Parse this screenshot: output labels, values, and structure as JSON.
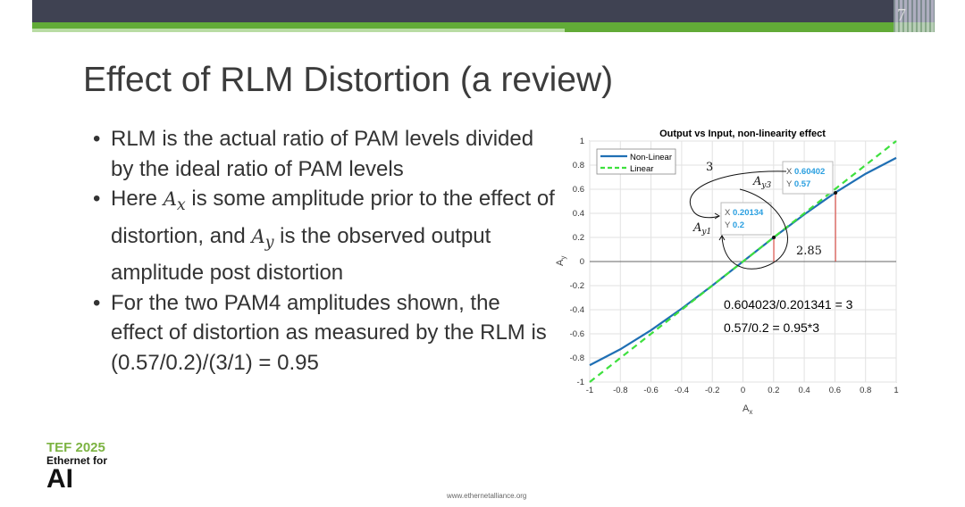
{
  "slide": {
    "page_number": "7",
    "title": "Effect of RLM Distortion (a review)",
    "footer_url": "www.ethernetalliance.org",
    "logo": {
      "line1": "TEF 2025",
      "line2": "Ethernet for",
      "line3": "AI"
    },
    "bullets": [
      {
        "parts": [
          "RLM is the actual ratio of PAM levels divided by the ideal ratio of PAM levels"
        ]
      },
      {
        "parts": [
          "Here ",
          "A",
          "x",
          " is some amplitude prior to the effect of distortion, and ",
          "A",
          "y",
          " is the observed output amplitude post distortion"
        ]
      },
      {
        "parts": [
          "For the two PAM4 amplitudes shown, the effect of distortion as measured by the RLM is (0.57/0.2)/(3/1) = 0.95"
        ]
      }
    ]
  },
  "colors": {
    "nonlinear": "#1f6fb4",
    "linear": "#3ee03e",
    "marker_line": "#d9342b",
    "datatip_value": "#2a9fe0",
    "header": "#3f4252",
    "accent_green": "#62ab37"
  },
  "chart_data": {
    "type": "line",
    "title": "Output vs Input, non-linearity effect",
    "xlabel": "A_x",
    "ylabel": "A_y",
    "xlim": [
      -1,
      1
    ],
    "ylim": [
      -1,
      1
    ],
    "grid": true,
    "legend_placement": "top-left",
    "xticks": [
      "-1",
      "-0.8",
      "-0.6",
      "-0.4",
      "-0.2",
      "0",
      "0.2",
      "0.4",
      "0.6",
      "0.8",
      "1"
    ],
    "yticks": [
      "1",
      "0.8",
      "0.6",
      "0.4",
      "0.2",
      "0",
      "-0.2",
      "-0.4",
      "-0.6",
      "-0.8",
      "-1"
    ],
    "x": [
      -1,
      -0.8,
      -0.6,
      -0.4,
      -0.2,
      0,
      0.2,
      0.4,
      0.6,
      0.8,
      1
    ],
    "series": [
      {
        "name": "Non-Linear",
        "values": [
          -0.86,
          -0.728,
          -0.57,
          -0.391,
          -0.199,
          0,
          0.199,
          0.391,
          0.57,
          0.728,
          0.86
        ],
        "style": "solid"
      },
      {
        "name": "Linear",
        "values": [
          -1,
          -0.8,
          -0.6,
          -0.4,
          -0.2,
          0,
          0.2,
          0.4,
          0.6,
          0.8,
          1
        ],
        "style": "dashed"
      }
    ],
    "datatips": [
      {
        "x_label": "X",
        "x": "0.20134",
        "y_label": "Y",
        "y": "0.2",
        "px": 0.20134,
        "py": 0.2
      },
      {
        "x_label": "X",
        "x": "0.60402",
        "y_label": "Y",
        "y": "0.57",
        "px": 0.60402,
        "py": 0.57
      }
    ],
    "annotations": {
      "ratio_x": "3",
      "ratio_y": "2.85",
      "ay1": "A",
      "ay1_sub": "y1",
      "ay3": "A",
      "ay3_sub": "y3",
      "eq1": "0.604023/0.201341 = 3",
      "eq2": "0.57/0.2 = 0.95*3"
    }
  }
}
